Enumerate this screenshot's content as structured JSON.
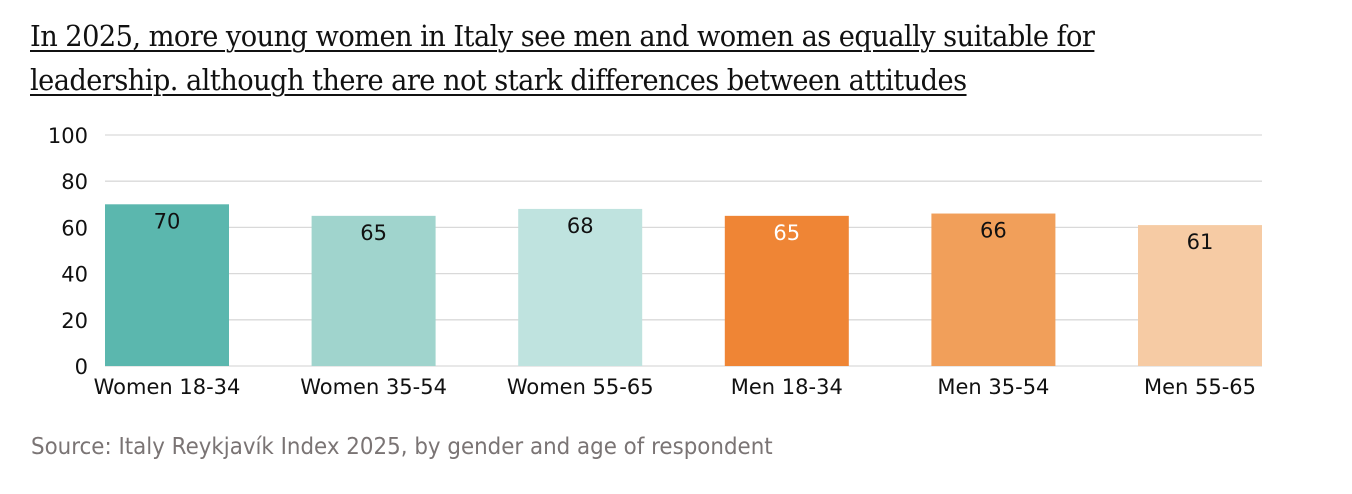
{
  "chart_data": {
    "type": "bar",
    "title_lines": [
      "In 2025, more young women in Italy see men and women as equally suitable for",
      "leadership. although there are not stark differences between attitudes"
    ],
    "categories": [
      "Women 18-34",
      "Women 35-54",
      "Women 55-65",
      "Men 18-34",
      "Men 35-54",
      "Men 55-65"
    ],
    "values": [
      70,
      65,
      68,
      65,
      66,
      61
    ],
    "colors": [
      "#5bb7ae",
      "#a0d4cd",
      "#bfe3df",
      "#ef8535",
      "#f19f5a",
      "#f6cba4"
    ],
    "label_colors": [
      "#111111",
      "#111111",
      "#111111",
      "#ffffff",
      "#111111",
      "#111111"
    ],
    "yticks": [
      0,
      20,
      40,
      60,
      80,
      100
    ],
    "ylim": [
      0,
      100
    ],
    "xlabel": "",
    "ylabel": "",
    "grid": true,
    "gridline_color": "#d9d9d9",
    "legend": "none",
    "source": "Source: Italy Reykjavík Index 2025, by gender and age of respondent"
  }
}
